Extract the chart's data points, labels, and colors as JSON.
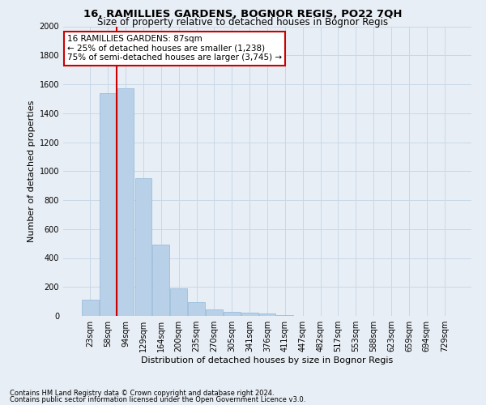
{
  "title": "16, RAMILLIES GARDENS, BOGNOR REGIS, PO22 7QH",
  "subtitle": "Size of property relative to detached houses in Bognor Regis",
  "xlabel": "Distribution of detached houses by size in Bognor Regis",
  "ylabel": "Number of detached properties",
  "footnote1": "Contains HM Land Registry data © Crown copyright and database right 2024.",
  "footnote2": "Contains public sector information licensed under the Open Government Licence v3.0.",
  "bin_labels": [
    "23sqm",
    "58sqm",
    "94sqm",
    "129sqm",
    "164sqm",
    "200sqm",
    "235sqm",
    "270sqm",
    "305sqm",
    "341sqm",
    "376sqm",
    "411sqm",
    "447sqm",
    "482sqm",
    "517sqm",
    "553sqm",
    "588sqm",
    "623sqm",
    "659sqm",
    "694sqm",
    "729sqm"
  ],
  "bar_values": [
    110,
    1540,
    1570,
    950,
    490,
    190,
    95,
    45,
    30,
    20,
    15,
    5,
    2,
    1,
    0,
    0,
    0,
    0,
    0,
    0,
    0
  ],
  "bar_color": "#b8d0e8",
  "bar_edge_color": "#90b8d8",
  "grid_color": "#c8d8e8",
  "vline_color": "#cc0000",
  "vline_x": 1.5,
  "annotation_line1": "16 RAMILLIES GARDENS: 87sqm",
  "annotation_line2": "← 25% of detached houses are smaller (1,238)",
  "annotation_line3": "75% of semi-detached houses are larger (3,745) →",
  "annotation_box_facecolor": "#ffffff",
  "annotation_box_edgecolor": "#cc0000",
  "ylim_max": 2000,
  "ytick_step": 200,
  "bg_color": "#e8eef5",
  "title_fontsize": 9.5,
  "subtitle_fontsize": 8.5,
  "axis_label_fontsize": 8,
  "tick_fontsize": 7,
  "annot_fontsize": 7.5,
  "footnote_fontsize": 6
}
